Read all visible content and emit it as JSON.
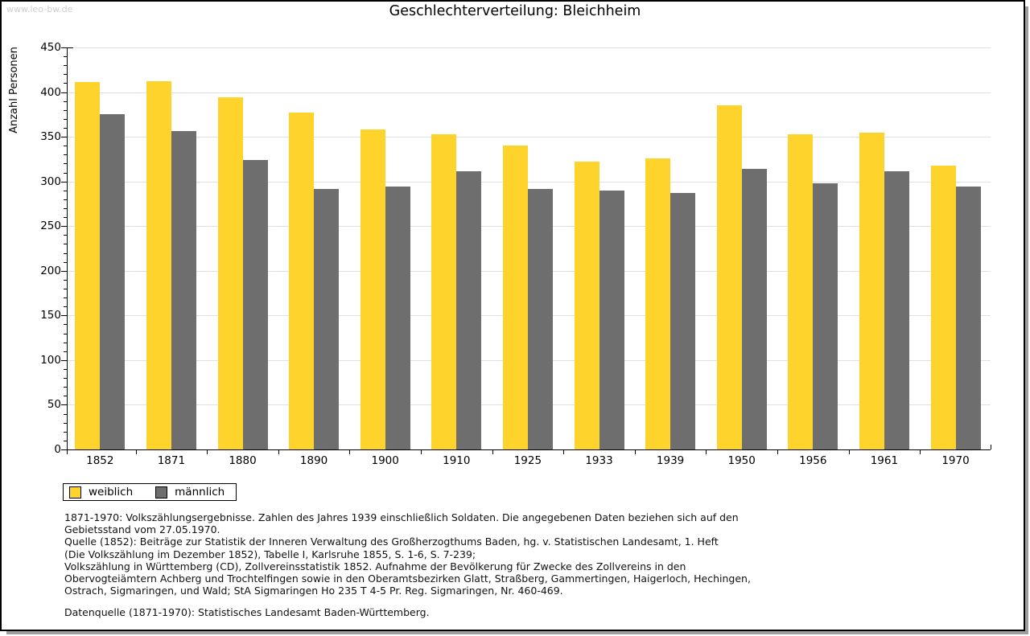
{
  "watermark": "www.leo-bw.de",
  "header": {
    "title": "Geschlechterverteilung: Bleichheim"
  },
  "chart_data": {
    "type": "bar",
    "title": "Geschlechterverteilung: Bleichheim",
    "xlabel": "",
    "ylabel": "Anzahl Personen",
    "ylim": [
      0,
      450
    ],
    "ytick_step": 50,
    "yminor_step": 10,
    "grid": true,
    "legend_position": "bottom-left",
    "categories": [
      "1852",
      "1871",
      "1880",
      "1890",
      "1900",
      "1910",
      "1925",
      "1933",
      "1939",
      "1950",
      "1956",
      "1961",
      "1970"
    ],
    "series": [
      {
        "name": "weiblich",
        "color": "#FDD32C",
        "values": [
          411,
          412,
          394,
          377,
          358,
          353,
          340,
          322,
          326,
          385,
          353,
          355,
          318
        ]
      },
      {
        "name": "männlich",
        "color": "#6E6E6E",
        "values": [
          375,
          356,
          324,
          292,
          294,
          311,
          292,
          290,
          287,
          314,
          298,
          311,
          294
        ]
      }
    ]
  },
  "footer": {
    "lines": [
      "1871-1970: Volkszählungsergebnisse. Zahlen des Jahres 1939 einschließlich Soldaten. Die angegebenen Daten beziehen sich auf den",
      "Gebietsstand vom 27.05.1970.",
      "Quelle (1852): Beiträge zur Statistik der Inneren Verwaltung des Großherzogthums Baden, hg. v. Statistischen Landesamt, 1. Heft",
      "(Die Volkszählung im Dezember 1852), Tabelle I, Karlsruhe 1855, S. 1-6, S. 7-239;",
      "Volkszählung in Württemberg (CD), Zollvereinsstatistik 1852. Aufnahme der Bevölkerung für Zwecke des Zollvereins in den",
      "Obervogteiämtern Achberg und Trochtelfingen sowie in den Oberamtsbezirken Glatt, Straßberg, Gammertingen, Haigerloch, Hechingen,",
      "Ostrach, Sigmaringen, und Wald; StA Sigmaringen Ho 235 T 4-5 Pr. Reg. Sigmaringen, Nr. 460-469."
    ],
    "datasource": "Datenquelle (1871-1970): Statistisches Landesamt Baden-Württemberg."
  }
}
